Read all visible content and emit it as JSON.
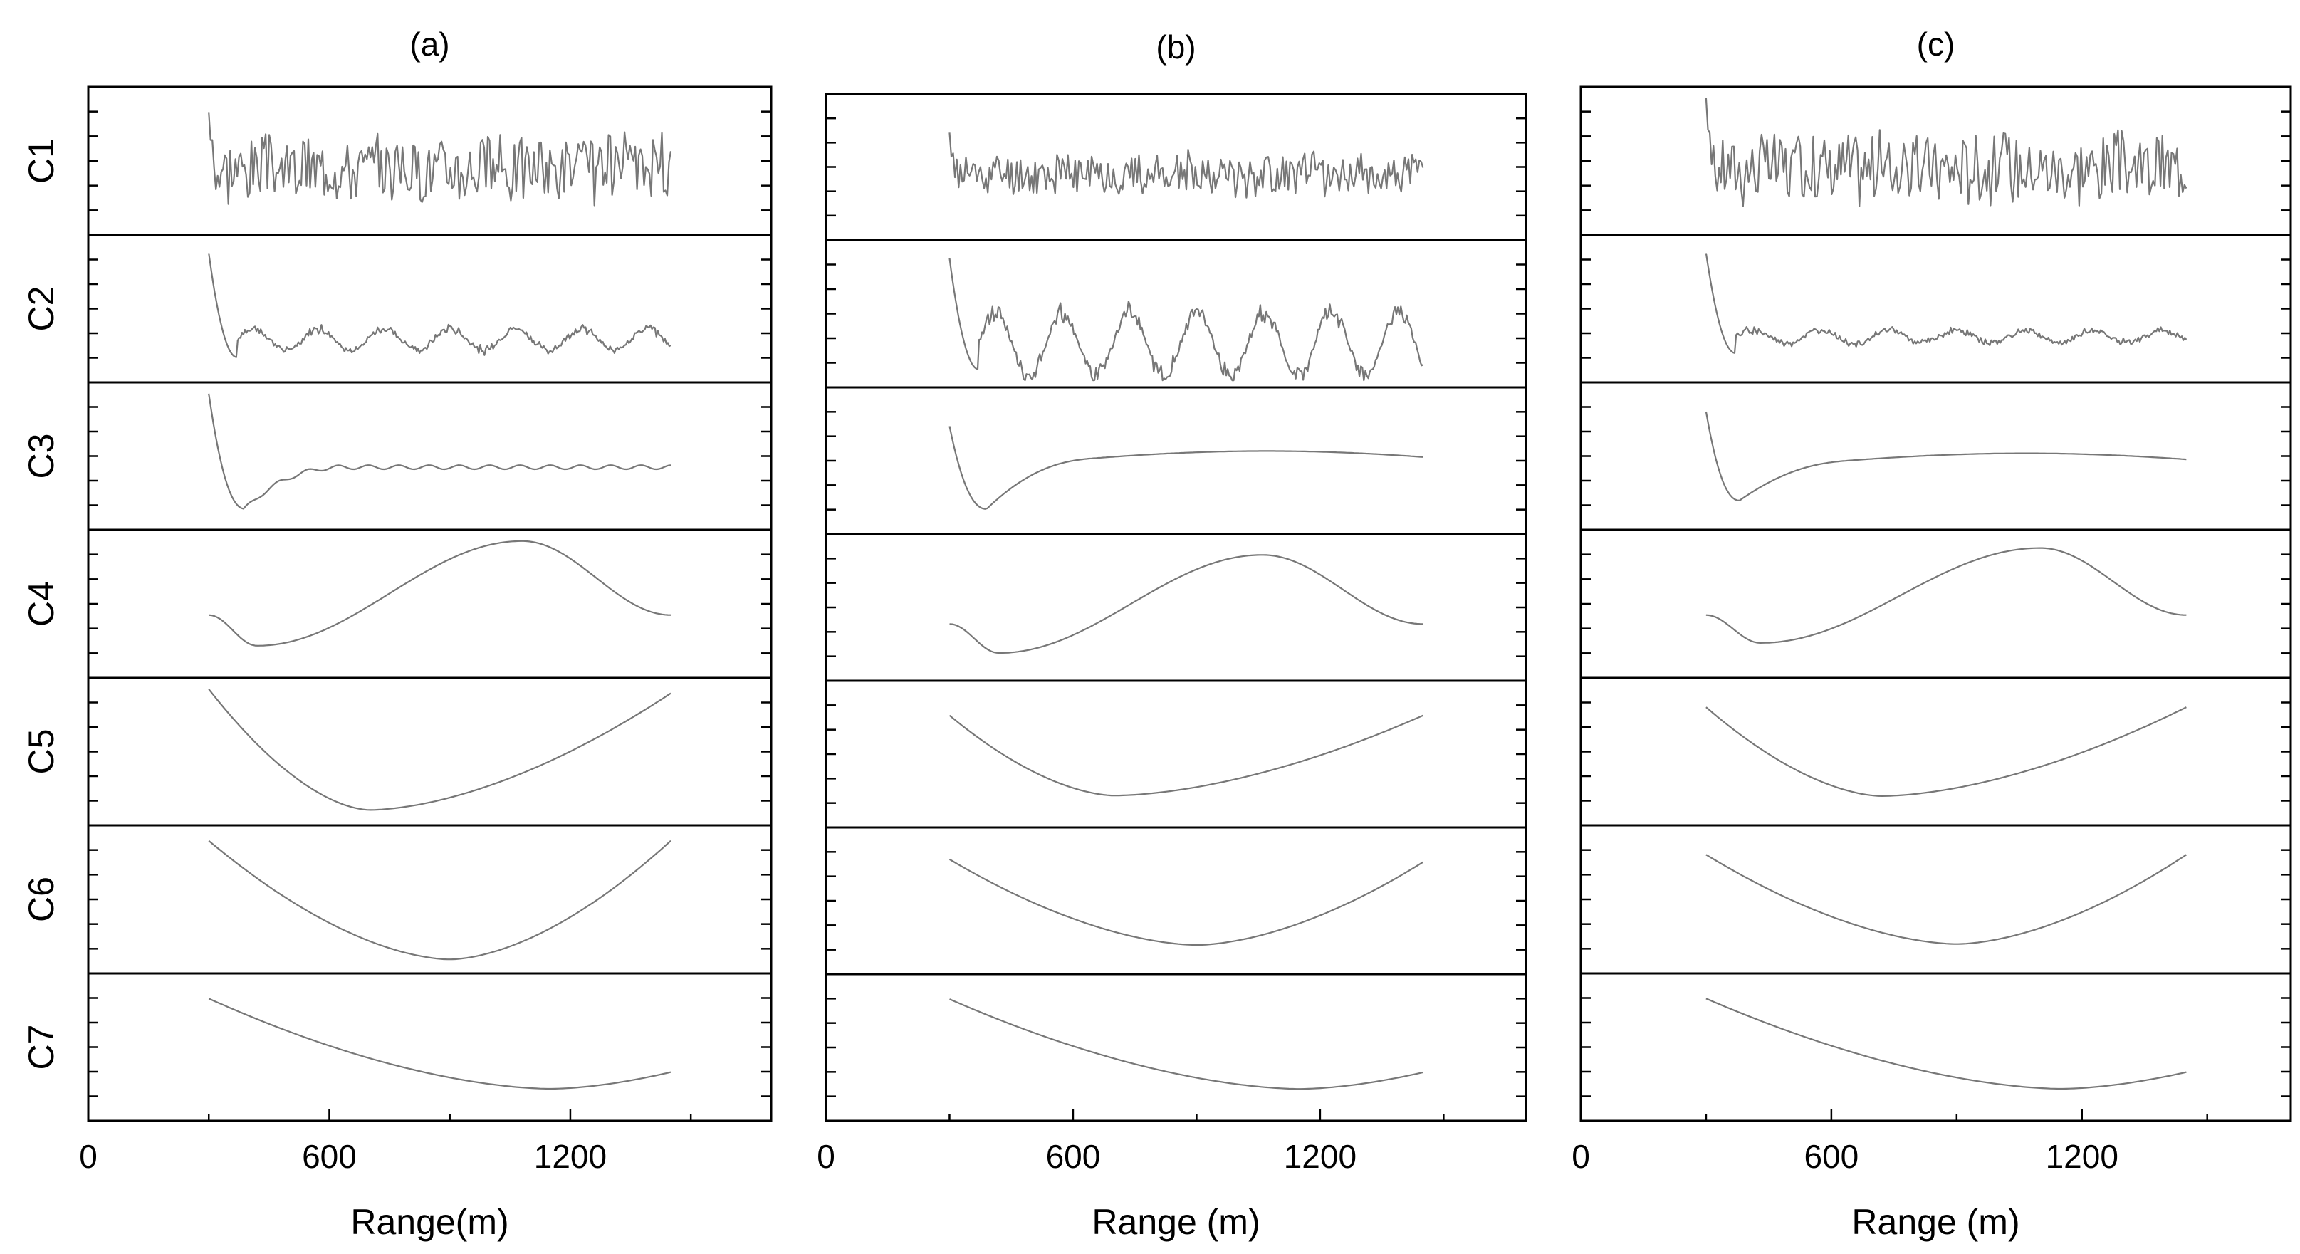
{
  "chart_data": {
    "type": "line",
    "description_text": [],
    "x_unit": "m",
    "xlim": [
      0,
      1700
    ],
    "rows": [
      "C1",
      "C2",
      "C3",
      "C4",
      "C5",
      "C6",
      "C7"
    ],
    "panels": [
      {
        "title": "(a)",
        "xlabel": "Range(m)",
        "xticks": [
          0,
          600,
          1200
        ],
        "x_range": [
          300,
          1450
        ],
        "series": [
          {
            "name": "C1",
            "kind": "noise",
            "amplitude": 0.28,
            "start": 0.85,
            "seed": 3
          },
          {
            "name": "C2",
            "kind": "decay_osc",
            "base": 0.28,
            "amplitude": 0.1,
            "start": 0.9,
            "dip": 0.15,
            "seed": 7
          },
          {
            "name": "C3",
            "kind": "decay_flat",
            "start": 0.95,
            "min_x": 390,
            "min_y": 0.12,
            "plateau": 0.42,
            "wiggle": 0.015
          },
          {
            "name": "C4",
            "kind": "sine",
            "x": [
              300,
              420,
              1080,
              1450
            ],
            "y": [
              0.42,
              0.2,
              0.95,
              0.42
            ]
          },
          {
            "name": "C5",
            "kind": "curve",
            "x": [
              300,
              700,
              1450
            ],
            "y": [
              0.95,
              0.08,
              0.92
            ]
          },
          {
            "name": "C6",
            "kind": "curve",
            "x": [
              300,
              900,
              1450
            ],
            "y": [
              0.92,
              0.07,
              0.92
            ]
          },
          {
            "name": "C7",
            "kind": "curve",
            "x": [
              300,
              1150,
              1450
            ],
            "y": [
              0.85,
              0.2,
              0.32
            ]
          }
        ]
      },
      {
        "title": "(b)",
        "xlabel": "Range (m)",
        "xticks": [
          0,
          600,
          1200
        ],
        "x_range": [
          300,
          1450
        ],
        "series": [
          {
            "name": "C1",
            "kind": "noise",
            "amplitude": 0.18,
            "start": 0.75,
            "seed": 11
          },
          {
            "name": "C2",
            "kind": "decay_osc",
            "base": 0.28,
            "amplitude": 0.3,
            "start": 0.9,
            "dip": 0.1,
            "seed": 13
          },
          {
            "name": "C3",
            "kind": "decay_flat",
            "start": 0.75,
            "min_x": 390,
            "min_y": 0.15,
            "plateau": 0.55,
            "wiggle": 0.0,
            "hump": true
          },
          {
            "name": "C4",
            "kind": "sine",
            "x": [
              300,
              420,
              1060,
              1450
            ],
            "y": [
              0.38,
              0.17,
              0.88,
              0.38
            ]
          },
          {
            "name": "C5",
            "kind": "curve",
            "x": [
              300,
              700,
              1450
            ],
            "y": [
              0.78,
              0.2,
              0.78
            ]
          },
          {
            "name": "C6",
            "kind": "curve",
            "x": [
              300,
              900,
              1450
            ],
            "y": [
              0.8,
              0.18,
              0.78
            ]
          },
          {
            "name": "C7",
            "kind": "curve",
            "x": [
              300,
              1150,
              1450
            ],
            "y": [
              0.85,
              0.2,
              0.32
            ]
          }
        ]
      },
      {
        "title": "(c)",
        "xlabel": "Range (m)",
        "xticks": [
          0,
          600,
          1200
        ],
        "x_range": [
          300,
          1450
        ],
        "series": [
          {
            "name": "C1",
            "kind": "noise",
            "amplitude": 0.3,
            "start": 0.95,
            "seed": 17
          },
          {
            "name": "C2",
            "kind": "decay_osc",
            "base": 0.3,
            "amplitude": 0.06,
            "start": 0.9,
            "dip": 0.18,
            "seed": 19
          },
          {
            "name": "C3",
            "kind": "decay_flat",
            "start": 0.82,
            "min_x": 380,
            "min_y": 0.18,
            "plateau": 0.5,
            "wiggle": 0.0,
            "hump": true
          },
          {
            "name": "C4",
            "kind": "sine",
            "x": [
              300,
              430,
              1100,
              1450
            ],
            "y": [
              0.42,
              0.22,
              0.9,
              0.42
            ]
          },
          {
            "name": "C5",
            "kind": "curve",
            "x": [
              300,
              720,
              1450
            ],
            "y": [
              0.82,
              0.18,
              0.82
            ]
          },
          {
            "name": "C6",
            "kind": "curve",
            "x": [
              300,
              900,
              1450
            ],
            "y": [
              0.82,
              0.18,
              0.82
            ]
          },
          {
            "name": "C7",
            "kind": "curve",
            "x": [
              300,
              1150,
              1450
            ],
            "y": [
              0.85,
              0.2,
              0.32
            ]
          }
        ]
      }
    ]
  }
}
